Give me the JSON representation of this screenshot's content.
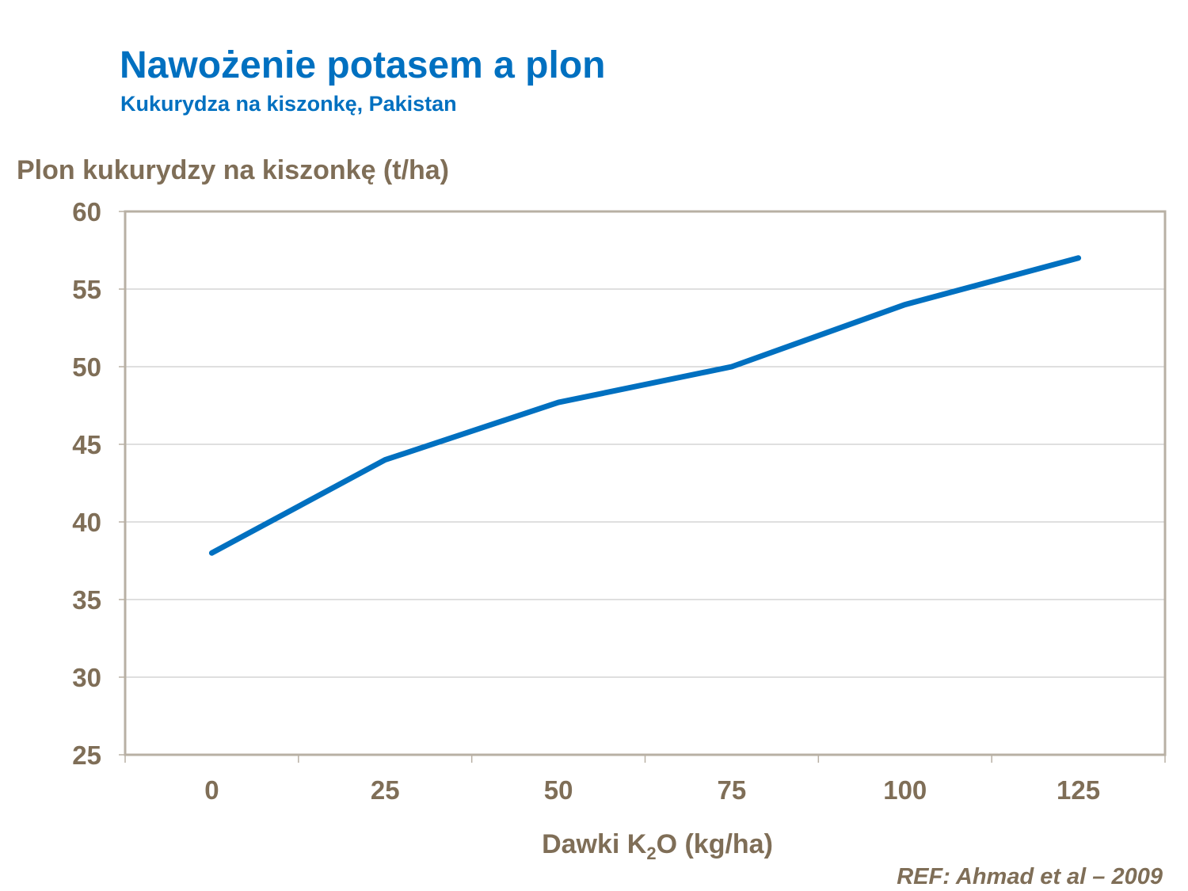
{
  "header": {
    "title": "Nawożenie potasem a plon",
    "subtitle": "Kukurydza na kiszonkę, Pakistan"
  },
  "reference": "REF:  Ahmad et al – 2009",
  "chart_data": {
    "type": "line",
    "title": "Nawożenie potasem a plon",
    "subtitle": "Kukurydza na kiszonkę, Pakistan",
    "ylabel": "Plon kukurydzy na kiszonkę (t/ha)",
    "xlabel_parts": {
      "before": "Dawki K",
      "sub": "2",
      "after": "O (kg/ha)"
    },
    "categories": [
      "0",
      "25",
      "50",
      "75",
      "100",
      "125"
    ],
    "series": [
      {
        "values": [
          38,
          44,
          47.7,
          50,
          54,
          57
        ]
      }
    ],
    "ylim": [
      25,
      60
    ],
    "yticks": [
      25,
      30,
      35,
      40,
      45,
      50,
      55,
      60
    ],
    "grid": true,
    "colors": {
      "line": "#0070c0",
      "axis_text": "#7f6e57",
      "grid": "#bfbfbf",
      "frame": "#b8b0a4"
    }
  }
}
